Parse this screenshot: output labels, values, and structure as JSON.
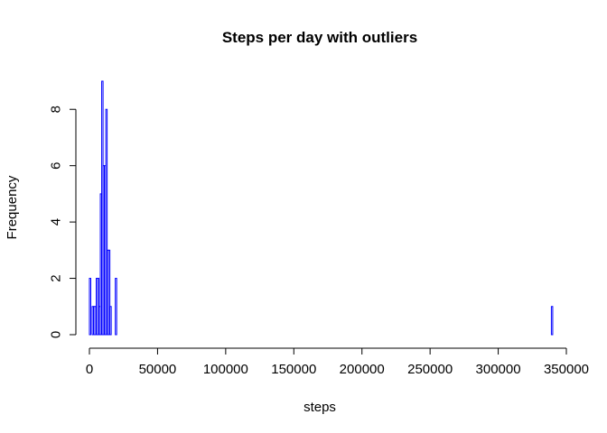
{
  "chart_data": {
    "type": "bar",
    "title": "Steps per day with outliers",
    "xlabel": "steps",
    "ylabel": "Frequency",
    "xlim": [
      0,
      350000
    ],
    "ylim": [
      0,
      9
    ],
    "x_ticks": [
      0,
      50000,
      100000,
      150000,
      200000,
      250000,
      300000,
      350000
    ],
    "y_ticks": [
      0,
      2,
      4,
      6,
      8
    ],
    "grid": false,
    "bar_color": "#0000ff",
    "bin_width": 1000,
    "bins": [
      {
        "x": 0,
        "count": 2
      },
      {
        "x": 1000,
        "count": 0
      },
      {
        "x": 2000,
        "count": 1
      },
      {
        "x": 3000,
        "count": 1
      },
      {
        "x": 4000,
        "count": 1
      },
      {
        "x": 5000,
        "count": 2
      },
      {
        "x": 6000,
        "count": 2
      },
      {
        "x": 7000,
        "count": 1
      },
      {
        "x": 8000,
        "count": 5
      },
      {
        "x": 9000,
        "count": 9
      },
      {
        "x": 10000,
        "count": 6
      },
      {
        "x": 11000,
        "count": 6
      },
      {
        "x": 12000,
        "count": 8
      },
      {
        "x": 13000,
        "count": 3
      },
      {
        "x": 14000,
        "count": 3
      },
      {
        "x": 15000,
        "count": 1
      },
      {
        "x": 16000,
        "count": 0
      },
      {
        "x": 17000,
        "count": 0
      },
      {
        "x": 18000,
        "count": 0
      },
      {
        "x": 19000,
        "count": 2
      },
      {
        "x": 339000,
        "count": 1
      }
    ],
    "last_bin_end": 340000
  }
}
